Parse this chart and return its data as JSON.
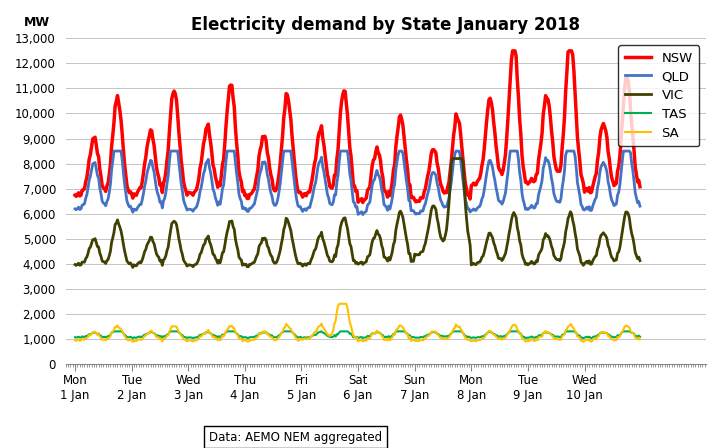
{
  "title": "Electricity demand by State January 2018",
  "ylabel": "MW",
  "ylim": [
    0,
    13000
  ],
  "yticks": [
    0,
    1000,
    2000,
    3000,
    4000,
    5000,
    6000,
    7000,
    8000,
    9000,
    10000,
    11000,
    12000,
    13000
  ],
  "colors": {
    "NSW": "#FF0000",
    "QLD": "#4472C4",
    "VIC": "#404000",
    "TAS": "#00B050",
    "SA": "#FFC000"
  },
  "line_widths": {
    "NSW": 2.5,
    "QLD": 2.0,
    "VIC": 2.0,
    "TAS": 1.5,
    "SA": 1.5
  },
  "x_tick_labels": [
    "Mon\n1 Jan",
    "Tue\n2 Jan",
    "Wed\n3 Jan",
    "Thu\n4 Jan",
    "Fri\n5 Jan",
    "Sat\n6 Jan",
    "Sun\n7 Jan",
    "Mon\n8 Jan",
    "Tue\n9 Jan",
    "Wed\n10 Jan"
  ],
  "x_tick_positions": [
    0,
    48,
    96,
    144,
    192,
    240,
    288,
    336,
    384,
    432
  ],
  "data_source": "Data: AEMO NEM aggregated",
  "n_points": 480
}
